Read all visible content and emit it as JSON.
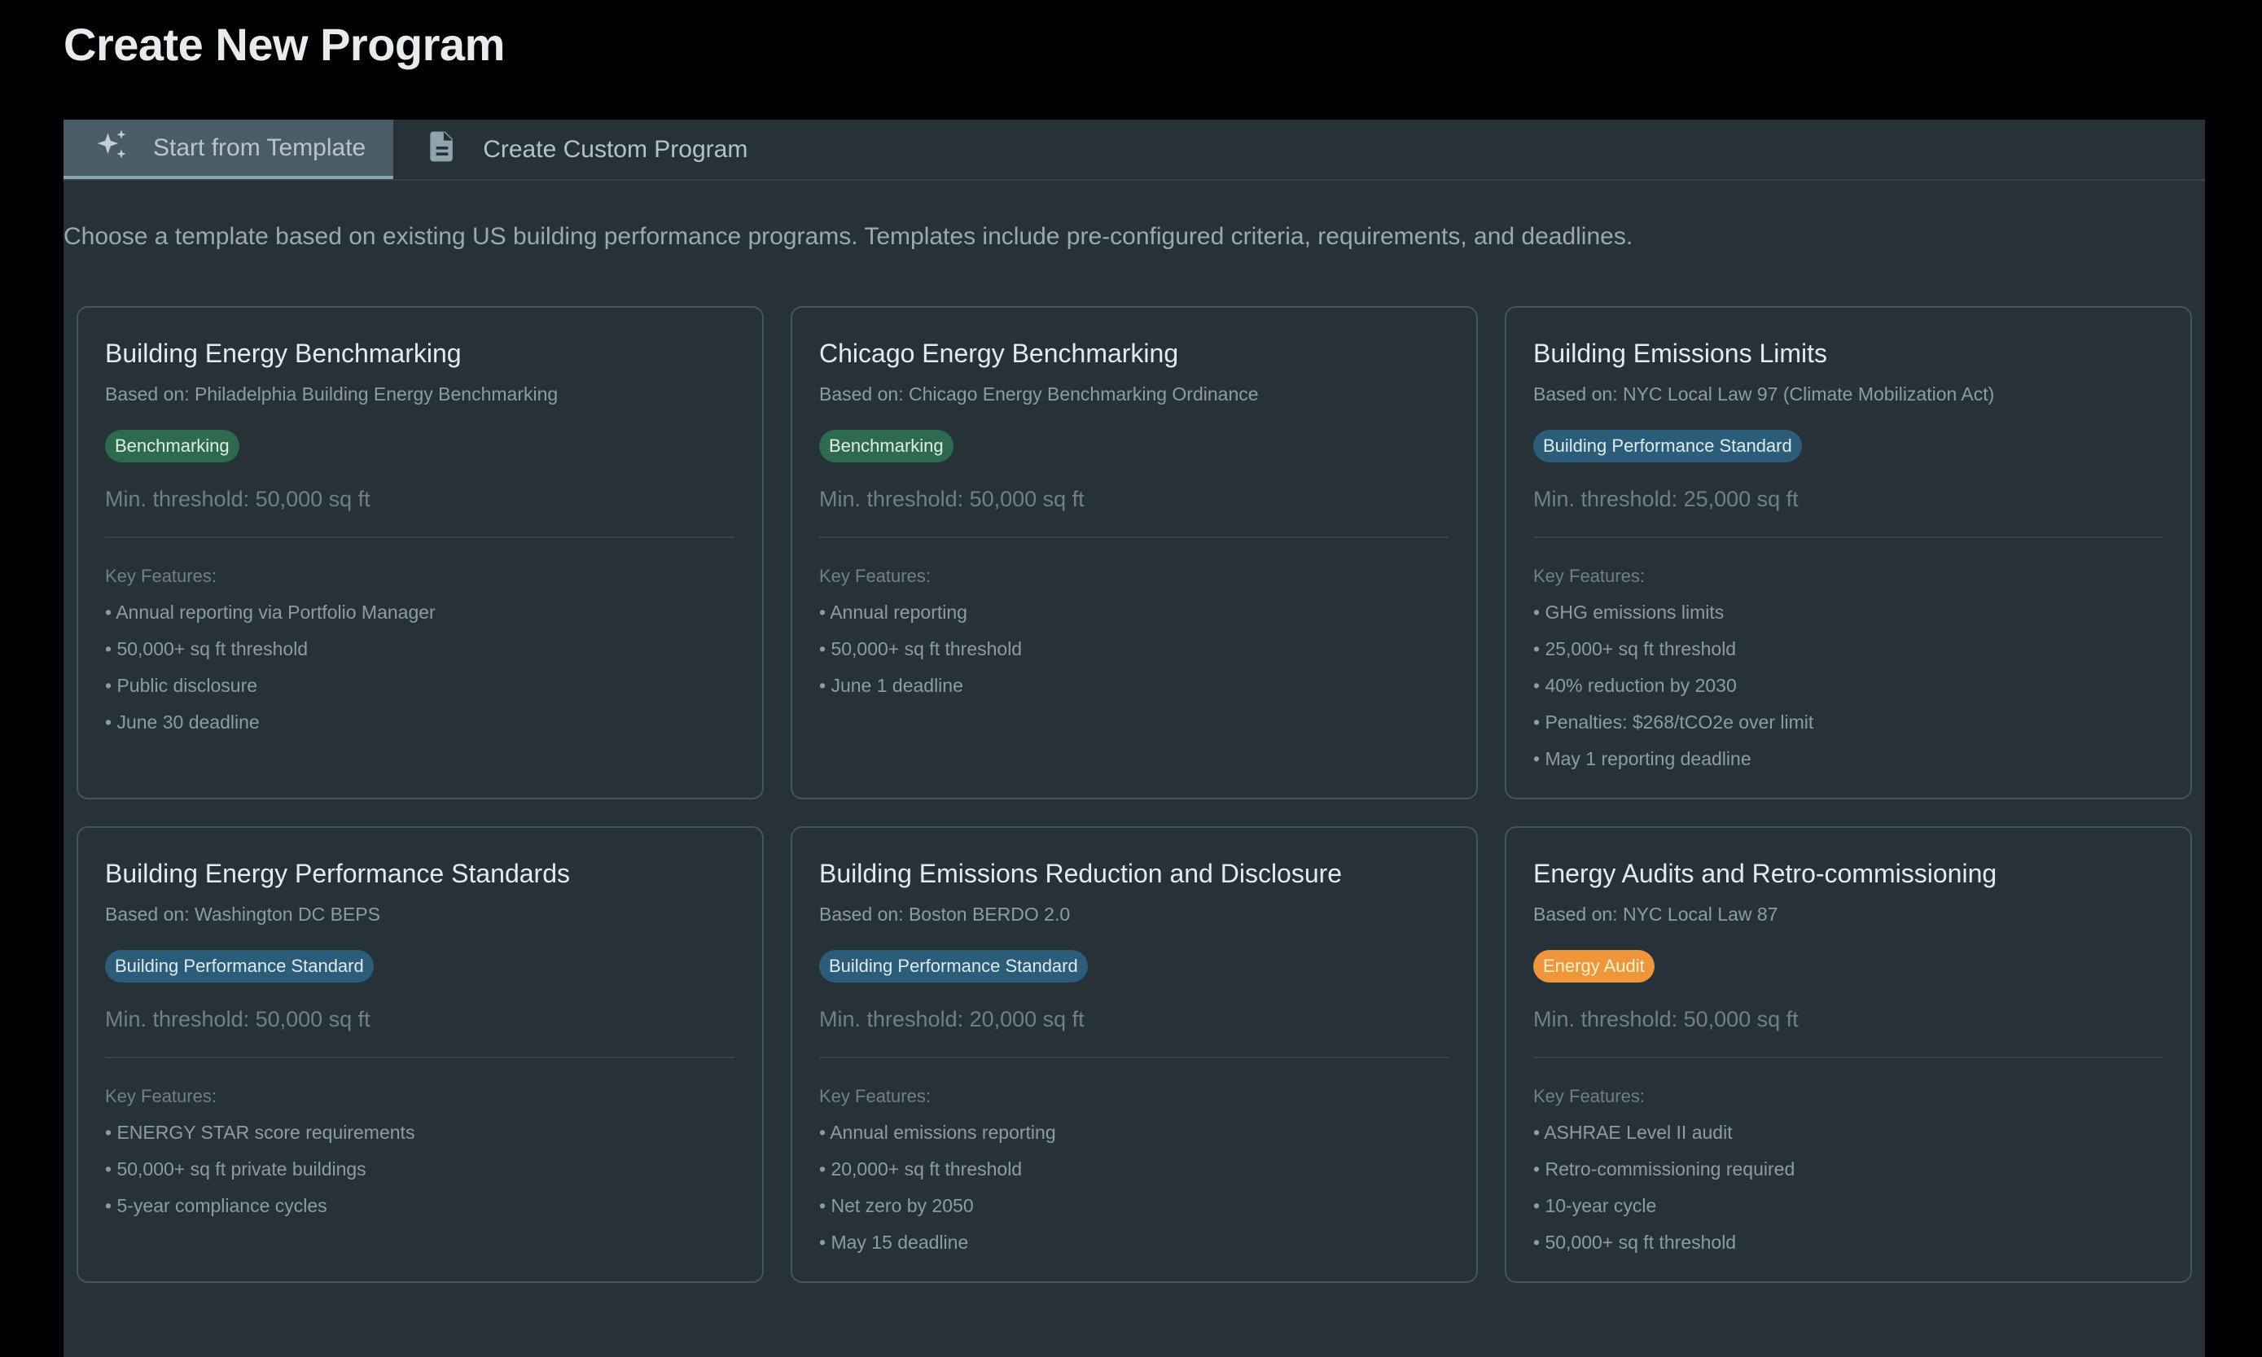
{
  "page_title": "Create New Program",
  "tabs": [
    {
      "label": "Start from Template",
      "icon": "sparkles-icon",
      "active": true
    },
    {
      "label": "Create Custom Program",
      "icon": "document-icon",
      "active": false
    }
  ],
  "description": "Choose a template based on existing US building performance programs. Templates include pre-configured criteria, requirements, and deadlines.",
  "key_features_label": "Key Features:",
  "badge_colors": {
    "Benchmarking": "#2e6a4e",
    "Building Performance Standard": "#2c5d78",
    "Energy Audit": "#f0963a"
  },
  "cards": [
    {
      "title": "Building Energy Benchmarking",
      "based_on": "Based on: Philadelphia Building Energy Benchmarking",
      "badge": "Benchmarking",
      "badge_type": "benchmarking",
      "threshold": "Min. threshold: 50,000 sq ft",
      "features": [
        "Annual reporting via Portfolio Manager",
        "50,000+ sq ft threshold",
        "Public disclosure",
        "June 30 deadline"
      ]
    },
    {
      "title": "Chicago Energy Benchmarking",
      "based_on": "Based on: Chicago Energy Benchmarking Ordinance",
      "badge": "Benchmarking",
      "badge_type": "benchmarking",
      "threshold": "Min. threshold: 50,000 sq ft",
      "features": [
        "Annual reporting",
        "50,000+ sq ft threshold",
        "June 1 deadline"
      ]
    },
    {
      "title": "Building Emissions Limits",
      "based_on": "Based on: NYC Local Law 97 (Climate Mobilization Act)",
      "badge": "Building Performance Standard",
      "badge_type": "bps",
      "threshold": "Min. threshold: 25,000 sq ft",
      "features": [
        "GHG emissions limits",
        "25,000+ sq ft threshold",
        "40% reduction by 2030",
        "Penalties: $268/tCO2e over limit",
        "May 1 reporting deadline"
      ]
    },
    {
      "title": "Building Energy Performance Standards",
      "based_on": "Based on: Washington DC BEPS",
      "badge": "Building Performance Standard",
      "badge_type": "bps",
      "threshold": "Min. threshold: 50,000 sq ft",
      "features": [
        "ENERGY STAR score requirements",
        "50,000+ sq ft private buildings",
        "5-year compliance cycles"
      ]
    },
    {
      "title": "Building Emissions Reduction and Disclosure",
      "based_on": "Based on: Boston BERDO 2.0",
      "badge": "Building Performance Standard",
      "badge_type": "bps",
      "threshold": "Min. threshold: 20,000 sq ft",
      "features": [
        "Annual emissions reporting",
        "20,000+ sq ft threshold",
        "Net zero by 2050",
        "May 15 deadline"
      ]
    },
    {
      "title": "Energy Audits and Retro-commissioning",
      "based_on": "Based on: NYC Local Law 87",
      "badge": "Energy Audit",
      "badge_type": "audit",
      "threshold": "Min. threshold: 50,000 sq ft",
      "features": [
        "ASHRAE Level II audit",
        "Retro-commissioning required",
        "10-year cycle",
        "50,000+ sq ft threshold"
      ]
    }
  ]
}
